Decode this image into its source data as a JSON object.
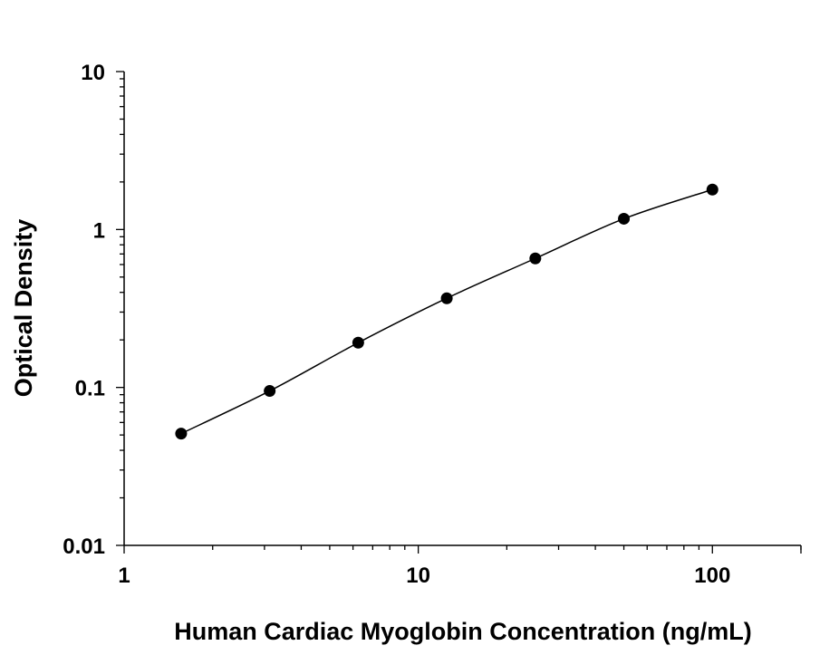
{
  "chart_data": {
    "type": "scatter",
    "title": "",
    "xlabel": "Human Cardiac Myoglobin Concentration (ng/mL)",
    "ylabel": "Optical Density",
    "xscale": "log",
    "yscale": "log",
    "xlim": [
      1,
      200
    ],
    "ylim": [
      0.01,
      10
    ],
    "xticks": [
      1,
      10,
      100
    ],
    "xtick_labels": [
      "1",
      "10",
      "100"
    ],
    "yticks": [
      0.01,
      0.1,
      1,
      10
    ],
    "ytick_labels": [
      "0.01",
      "0.1",
      "1",
      "10"
    ],
    "grid": false,
    "legend": "none",
    "fit_curve": true,
    "marker_color": "#000000",
    "line_color": "#000000",
    "series": [
      {
        "x": [
          1.5625,
          3.125,
          6.25,
          12.5,
          25,
          50,
          100
        ],
        "y": [
          0.051,
          0.095,
          0.192,
          0.367,
          0.656,
          1.17,
          1.79
        ]
      }
    ]
  }
}
